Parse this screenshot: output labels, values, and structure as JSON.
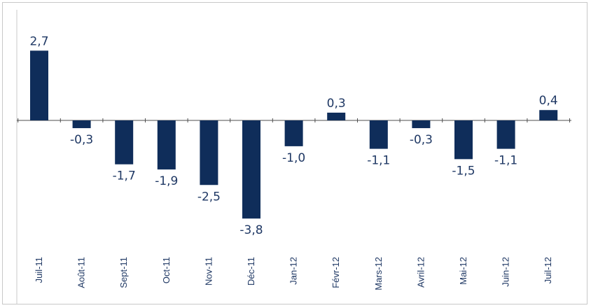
{
  "chart_data": {
    "type": "bar",
    "categories": [
      "Juil-11",
      "Août-11",
      "Sept-11",
      "Oct-11",
      "Nov-11",
      "Déc-11",
      "Jan-12",
      "Févr-12",
      "Mars-12",
      "Avril-12",
      "Mai-12",
      "Juin-12",
      "Juil-12"
    ],
    "values": [
      2.7,
      -0.3,
      -1.7,
      -1.9,
      -2.5,
      -3.8,
      -1.0,
      0.3,
      -1.1,
      -0.3,
      -1.5,
      -1.1,
      0.4
    ],
    "value_labels": [
      "2,7",
      "-0,3",
      "-1,7",
      "-1,9",
      "-2,5",
      "-3,8",
      "-1,0",
      "0,3",
      "-1,1",
      "-0,3",
      "-1,5",
      "-1,1",
      "0,4"
    ],
    "title": "",
    "xlabel": "",
    "ylabel": "",
    "ylim": [
      -3.8,
      2.7
    ],
    "grid": false,
    "legend": "none",
    "colors": {
      "bar": "#0f2d5a",
      "text": "#1f3864",
      "axis": "#4f4f4f",
      "border": "#c8c8c8"
    }
  }
}
